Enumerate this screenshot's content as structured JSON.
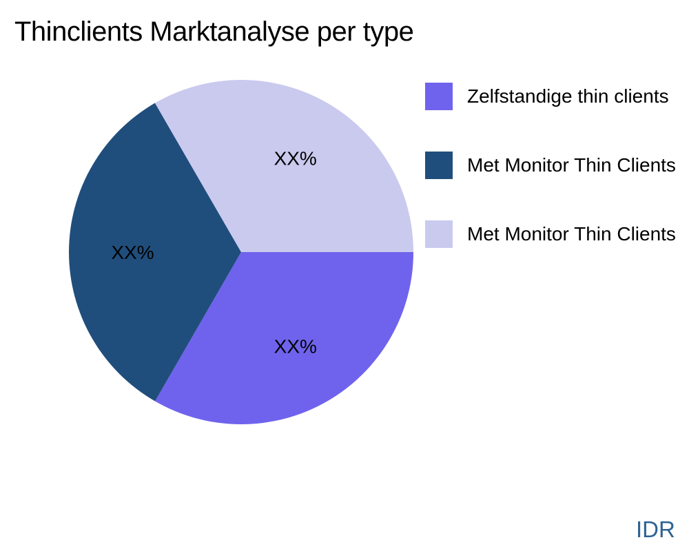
{
  "title": "Thinclients Marktanalyse per type",
  "watermark": "IDR",
  "colors": {
    "background": "#ffffff",
    "title_text": "#000000",
    "slice_label_text": "#000000",
    "watermark_text": "#2E6293"
  },
  "chart_data": {
    "type": "pie",
    "title": "Thinclients Marktanalyse per type",
    "start_angle_deg": 0,
    "direction": "clockwise",
    "legend_position": "right",
    "slices": [
      {
        "name": "Zelfstandige thin clients",
        "value": 33.33,
        "display_label": "XX%",
        "color": "#6F63ED"
      },
      {
        "name": "Met Monitor Thin Clients",
        "value": 33.33,
        "display_label": "XX%",
        "color": "#204E7C"
      },
      {
        "name": "Met Monitor Thin Clients",
        "value": 33.34,
        "display_label": "XX%",
        "color": "#CACAEF"
      }
    ]
  },
  "legend": {
    "items": [
      {
        "label": "Zelfstandige thin clients",
        "color": "#6F63ED"
      },
      {
        "label": "Met Monitor Thin Clients",
        "color": "#204E7C"
      },
      {
        "label": "Met Monitor Thin Clients",
        "color": "#CACAEF"
      }
    ]
  }
}
